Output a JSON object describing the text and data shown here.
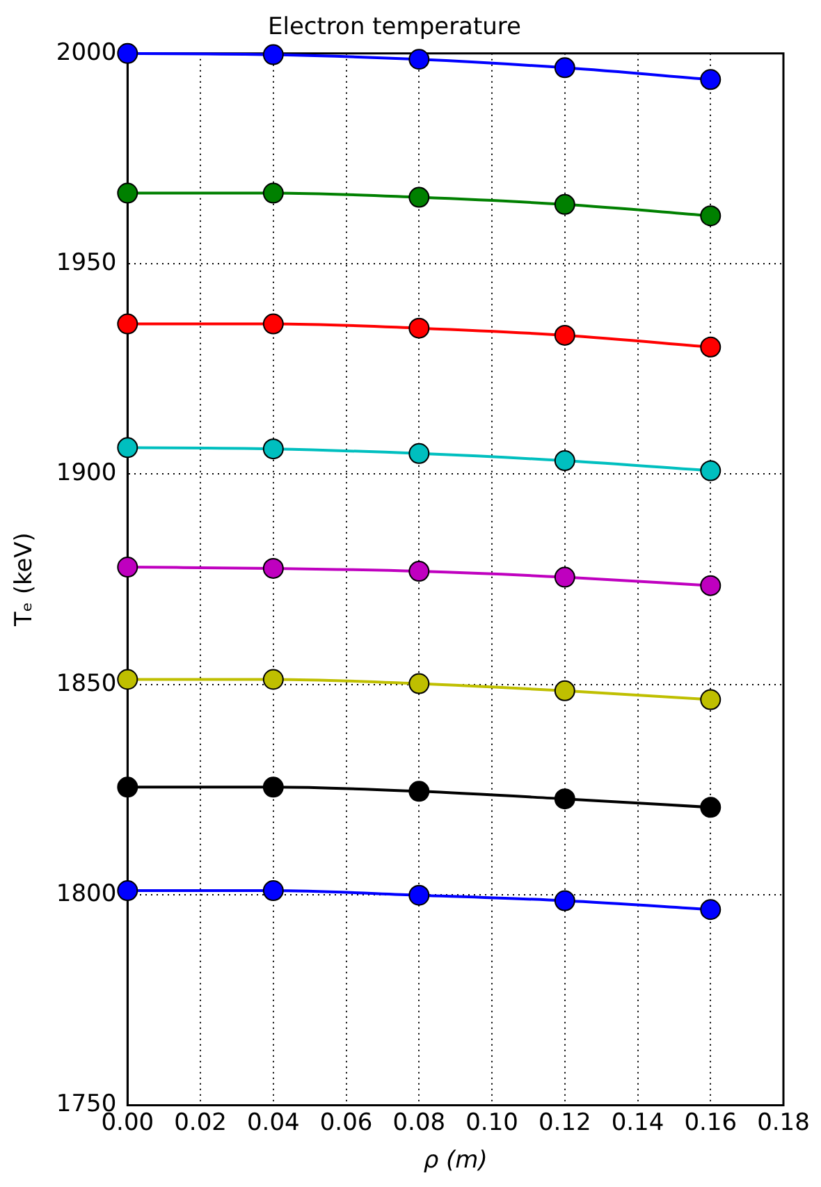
{
  "chart_data": {
    "type": "line",
    "title": "Electron temperature",
    "xlabel": "ρ (m)",
    "ylabel": "Tₑ (keV)",
    "x": [
      0,
      0.04,
      0.08,
      0.12,
      0.16
    ],
    "series": [
      {
        "color": "#0000ff",
        "values": [
          2000,
          1999.7,
          1998.6,
          1996.6,
          1993.8
        ]
      },
      {
        "color": "#008000",
        "values": [
          1966.8,
          1966.8,
          1965.8,
          1964.1,
          1961.4
        ]
      },
      {
        "color": "#ff0000",
        "values": [
          1935.7,
          1935.7,
          1934.7,
          1933.0,
          1930.2
        ]
      },
      {
        "color": "#00bfbf",
        "values": [
          1906.3,
          1906.0,
          1904.9,
          1903.2,
          1900.8
        ]
      },
      {
        "color": "#bf00bf",
        "values": [
          1877.9,
          1877.6,
          1876.9,
          1875.5,
          1873.5
        ]
      },
      {
        "color": "#bfbf00",
        "values": [
          1851.2,
          1851.2,
          1850.2,
          1848.5,
          1846.4
        ]
      },
      {
        "color": "#000000",
        "values": [
          1825.6,
          1825.6,
          1824.6,
          1822.8,
          1820.8
        ]
      },
      {
        "color": "#0000ff",
        "values": [
          1801.0,
          1801.0,
          1799.9,
          1798.6,
          1796.5
        ]
      }
    ],
    "xlim": [
      0,
      0.18
    ],
    "xticks": [
      {
        "value": 0,
        "label": "0.00"
      },
      {
        "value": 0.02,
        "label": "0.02"
      },
      {
        "value": 0.04,
        "label": "0.04"
      },
      {
        "value": 0.06,
        "label": "0.06"
      },
      {
        "value": 0.08,
        "label": "0.08"
      },
      {
        "value": 0.1,
        "label": "0.10"
      },
      {
        "value": 0.12,
        "label": "0.12"
      },
      {
        "value": 0.14,
        "label": "0.14"
      },
      {
        "value": 0.16,
        "label": "0.16"
      },
      {
        "value": 0.18,
        "label": "0.18"
      }
    ],
    "ylim": [
      1750,
      2000
    ],
    "yticks": [
      1750,
      1800,
      1850,
      1900,
      1950,
      2000
    ],
    "grid": true,
    "marker": "circle",
    "line_style": "solid",
    "legend": false
  }
}
